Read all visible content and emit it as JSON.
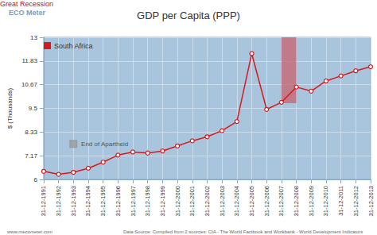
{
  "chart_data": {
    "type": "line",
    "title": "GDP per Capita (PPP)",
    "y_label": "$ (Thousands)",
    "logo": "ECO Meter",
    "watermark": "www.mecometer.com",
    "source": "Data Source: Compiled from 2 sources: CIA - The World Factbook and Workbank - World Development Indicators",
    "categories": [
      "31-12-1991",
      "31-12-1992",
      "31-12-1993",
      "31-12-1994",
      "31-12-1995",
      "31-12-1996",
      "31-12-1997",
      "31-12-1998",
      "31-12-1999",
      "31-12-2000",
      "31-12-2001",
      "31-12-2002",
      "31-12-2003",
      "31-12-2004",
      "31-12-2005",
      "31-12-2006",
      "31-12-2007",
      "31-12-2008",
      "31-12-2009",
      "31-12-2010",
      "31-12-2011",
      "31-12-2012",
      "31-12-2013"
    ],
    "series": [
      {
        "name": "South Africa",
        "color": "#d7191c",
        "marker": "circle",
        "values": [
          6.4,
          6.25,
          6.35,
          6.55,
          6.85,
          7.2,
          7.35,
          7.3,
          7.4,
          7.65,
          7.9,
          8.1,
          8.4,
          8.85,
          12.2,
          9.45,
          9.8,
          10.55,
          10.35,
          10.85,
          11.1,
          11.35,
          11.55
        ]
      }
    ],
    "annotations": [
      {
        "text": "Great Recession",
        "x_start": "31-12-2007",
        "x_end": "31-12-2008",
        "y_start": 9.75,
        "y_end": 13,
        "color": "#c8606e"
      },
      {
        "text": "End of Apartheid",
        "x": "31-12-1993",
        "y": 7.75,
        "color": "#9a9a9a",
        "marker": "rect"
      }
    ],
    "ylim": [
      6,
      13
    ],
    "yticks": [
      6,
      7.17,
      8.33,
      9.5,
      10.67,
      11.83,
      13
    ],
    "grid": true,
    "legend": "top-left"
  }
}
